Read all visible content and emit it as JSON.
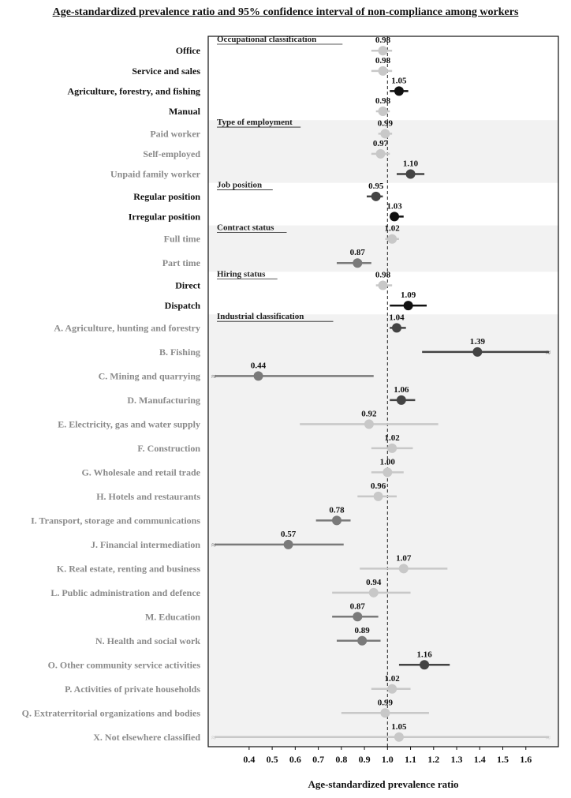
{
  "title": "Age-standardized prevalence ratio and 95% confidence interval of non-compliance among workers",
  "chart_data": {
    "type": "forest",
    "xlabel": "Age-standardized prevalence ratio",
    "xlim": [
      0.25,
      1.7
    ],
    "xticks": [
      "0.4",
      "0.5",
      "0.6",
      "0.7",
      "0.8",
      "0.9",
      "1.0",
      "1.1",
      "1.2",
      "1.3",
      "1.4",
      "1.5",
      "1.6"
    ],
    "reference_line": 1.0,
    "colors": {
      "black": "#111111",
      "dark": "#444444",
      "mid": "#7a7a7a",
      "light": "#c8c8c8",
      "shade": "#f2f2f2"
    },
    "groups": [
      {
        "title": "Occupational classification",
        "shaded": false,
        "items": [
          {
            "label": "Office",
            "est": 0.98,
            "lo": 0.93,
            "hi": 1.02,
            "tone": "light",
            "bold": true,
            "value_label": "0.98"
          },
          {
            "label": "Service and sales",
            "est": 0.98,
            "lo": 0.93,
            "hi": 1.02,
            "tone": "light",
            "bold": true,
            "value_label": "0.98"
          },
          {
            "label": "Agriculture, forestry, and fishing",
            "est": 1.05,
            "lo": 1.01,
            "hi": 1.09,
            "tone": "black",
            "bold": true,
            "value_label": "1.05"
          },
          {
            "label": "Manual",
            "est": 0.98,
            "lo": 0.95,
            "hi": 1.01,
            "tone": "light",
            "bold": true,
            "value_label": "0.98"
          }
        ]
      },
      {
        "title": "Type of employment",
        "shaded": true,
        "items": [
          {
            "label": "Paid worker",
            "est": 0.99,
            "lo": 0.96,
            "hi": 1.02,
            "tone": "light",
            "bold": false,
            "value_label": "0.99"
          },
          {
            "label": "Self-employed",
            "est": 0.97,
            "lo": 0.93,
            "hi": 1.01,
            "tone": "light",
            "bold": false,
            "value_label": "0.97"
          },
          {
            "label": "Unpaid family worker",
            "est": 1.1,
            "lo": 1.04,
            "hi": 1.16,
            "tone": "dark",
            "bold": false,
            "value_label": "1.10"
          }
        ]
      },
      {
        "title": "Job position",
        "shaded": false,
        "items": [
          {
            "label": "Regular position",
            "est": 0.95,
            "lo": 0.91,
            "hi": 0.98,
            "tone": "dark",
            "bold": true,
            "value_label": "0.95"
          },
          {
            "label": "Irregular position",
            "est": 1.03,
            "lo": 1.01,
            "hi": 1.07,
            "tone": "black",
            "bold": true,
            "value_label": "1.03"
          }
        ]
      },
      {
        "title": "Contract status",
        "shaded": true,
        "items": [
          {
            "label": "Full time",
            "est": 1.02,
            "lo": 0.99,
            "hi": 1.05,
            "tone": "light",
            "bold": false,
            "value_label": "1.02"
          },
          {
            "label": "Part time",
            "est": 0.87,
            "lo": 0.78,
            "hi": 0.93,
            "tone": "mid",
            "bold": false,
            "value_label": "0.87"
          }
        ]
      },
      {
        "title": "Hiring status",
        "shaded": false,
        "items": [
          {
            "label": "Direct",
            "est": 0.98,
            "lo": 0.95,
            "hi": 1.02,
            "tone": "light",
            "bold": true,
            "value_label": "0.98"
          },
          {
            "label": "Dispatch",
            "est": 1.09,
            "lo": 1.01,
            "hi": 1.17,
            "tone": "black",
            "bold": true,
            "value_label": "1.09"
          }
        ]
      },
      {
        "title": "Industrial classification",
        "shaded": true,
        "items": [
          {
            "label": "A. Agriculture, hunting and forestry",
            "est": 1.04,
            "lo": 1.01,
            "hi": 1.08,
            "tone": "dark",
            "bold": false,
            "value_label": "1.04"
          },
          {
            "label": "B. Fishing",
            "est": 1.39,
            "lo": 1.15,
            "hi": 1.7,
            "tone": "dark",
            "bold": false,
            "value_label": "1.39",
            "break_hi": true
          },
          {
            "label": "C. Mining and quarrying",
            "est": 0.44,
            "lo": 0.25,
            "hi": 0.94,
            "tone": "mid",
            "bold": false,
            "value_label": "0.44",
            "break_lo": true
          },
          {
            "label": "D. Manufacturing",
            "est": 1.06,
            "lo": 1.01,
            "hi": 1.12,
            "tone": "dark",
            "bold": false,
            "value_label": "1.06"
          },
          {
            "label": "E. Electricity, gas and water supply",
            "est": 0.92,
            "lo": 0.62,
            "hi": 1.22,
            "tone": "light",
            "bold": false,
            "value_label": "0.92"
          },
          {
            "label": "F. Construction",
            "est": 1.02,
            "lo": 0.93,
            "hi": 1.11,
            "tone": "light",
            "bold": false,
            "value_label": "1.02"
          },
          {
            "label": "G. Wholesale and retail trade",
            "est": 1.0,
            "lo": 0.93,
            "hi": 1.07,
            "tone": "light",
            "bold": false,
            "value_label": "1.00"
          },
          {
            "label": "H. Hotels and restaurants",
            "est": 0.96,
            "lo": 0.87,
            "hi": 1.04,
            "tone": "light",
            "bold": false,
            "value_label": "0.96"
          },
          {
            "label": "I. Transport, storage and communications",
            "est": 0.78,
            "lo": 0.69,
            "hi": 0.84,
            "tone": "mid",
            "bold": false,
            "value_label": "0.78"
          },
          {
            "label": "J. Financial intermediation",
            "est": 0.57,
            "lo": 0.25,
            "hi": 0.81,
            "tone": "mid",
            "bold": false,
            "value_label": "0.57",
            "break_lo": true
          },
          {
            "label": "K. Real estate, renting and business",
            "est": 1.07,
            "lo": 0.88,
            "hi": 1.26,
            "tone": "light",
            "bold": false,
            "value_label": "1.07"
          },
          {
            "label": "L. Public administration and defence",
            "est": 0.94,
            "lo": 0.76,
            "hi": 1.1,
            "tone": "light",
            "bold": false,
            "value_label": "0.94"
          },
          {
            "label": "M. Education",
            "est": 0.87,
            "lo": 0.76,
            "hi": 0.96,
            "tone": "mid",
            "bold": false,
            "value_label": "0.87"
          },
          {
            "label": "N. Health and social work",
            "est": 0.89,
            "lo": 0.78,
            "hi": 0.97,
            "tone": "mid",
            "bold": false,
            "value_label": "0.89"
          },
          {
            "label": "O. Other community service activities",
            "est": 1.16,
            "lo": 1.05,
            "hi": 1.27,
            "tone": "dark",
            "bold": false,
            "value_label": "1.16"
          },
          {
            "label": "P. Activities of private households",
            "est": 1.02,
            "lo": 0.93,
            "hi": 1.1,
            "tone": "light",
            "bold": false,
            "value_label": "1.02"
          },
          {
            "label": "Q. Extraterritorial organizations and bodies",
            "est": 0.99,
            "lo": 0.8,
            "hi": 1.18,
            "tone": "light",
            "bold": false,
            "value_label": "0.99"
          },
          {
            "label": "X. Not elsewhere classified",
            "est": 1.05,
            "lo": 0.25,
            "hi": 1.7,
            "tone": "light",
            "bold": false,
            "value_label": "1.05",
            "break_lo": true,
            "break_hi": true
          }
        ]
      }
    ]
  }
}
